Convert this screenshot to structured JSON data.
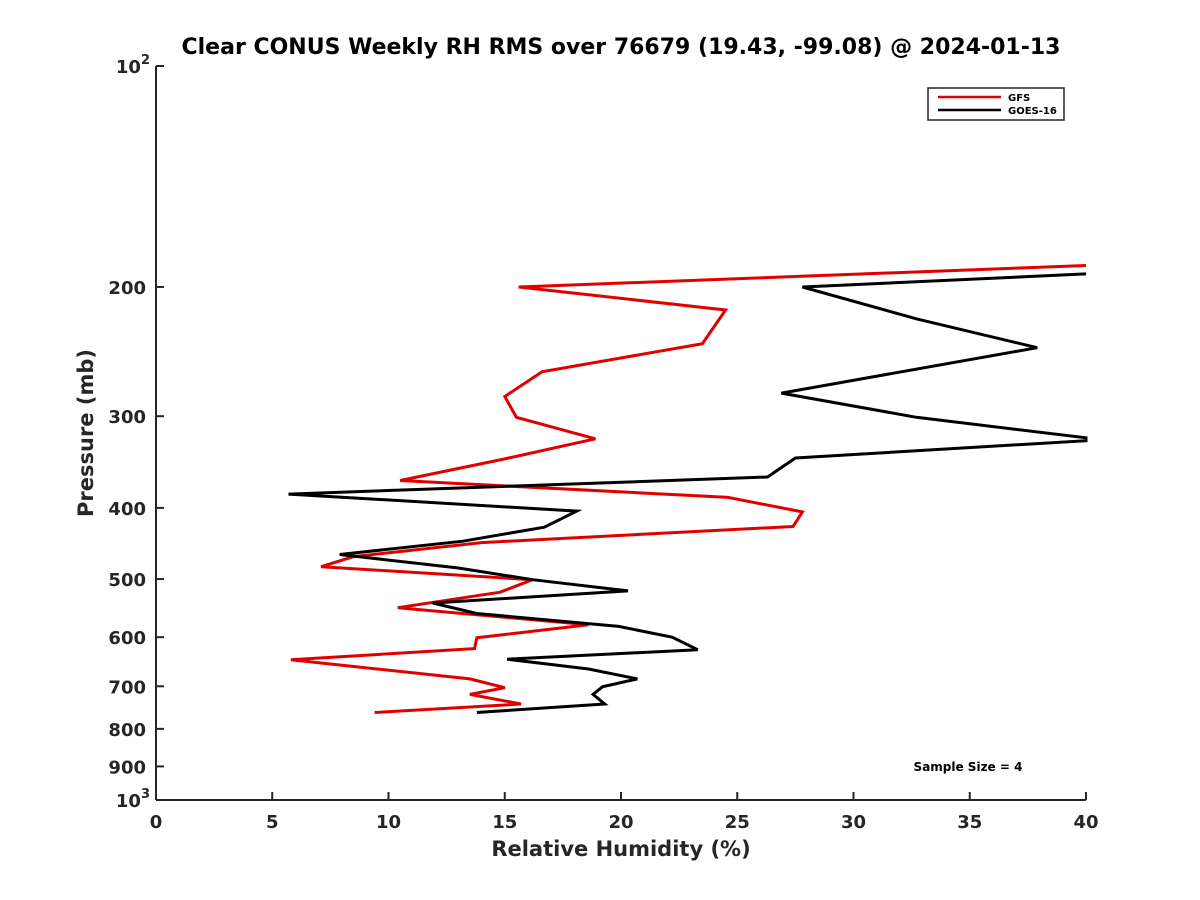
{
  "chart_data": {
    "type": "line",
    "title": "Clear CONUS Weekly RH RMS over 76679 (19.43, -99.08) @ 2024-01-13",
    "xlabel": "Relative Humidity (%)",
    "ylabel": "Pressure (mb)",
    "xlim": [
      0,
      40
    ],
    "ylim": [
      100,
      1000
    ],
    "y_scale": "log",
    "y_reversed": true,
    "x_ticks": [
      "0",
      "5",
      "10",
      "15",
      "20",
      "25",
      "30",
      "35",
      "40"
    ],
    "y_ticks": [
      {
        "value": 100,
        "base": "10",
        "exp": "2",
        "label": ""
      },
      {
        "value": 200,
        "label": "200"
      },
      {
        "value": 300,
        "label": "300"
      },
      {
        "value": 400,
        "label": "400"
      },
      {
        "value": 500,
        "label": "500"
      },
      {
        "value": 600,
        "label": "600"
      },
      {
        "value": 700,
        "label": "700"
      },
      {
        "value": 800,
        "label": "800"
      },
      {
        "value": 900,
        "label": "900"
      },
      {
        "value": 1000,
        "base": "10",
        "exp": "3",
        "label": ""
      }
    ],
    "grid": false,
    "legend_position": "top-right",
    "annotation": "Sample Size = 4",
    "series": [
      {
        "name": "GFS",
        "color": "#e00000",
        "points": [
          [
            40,
            187
          ],
          [
            15.6,
            200
          ],
          [
            24.5,
            215
          ],
          [
            23.5,
            239
          ],
          [
            16.6,
            261
          ],
          [
            15.0,
            282
          ],
          [
            15.5,
            301
          ],
          [
            18.9,
            322
          ],
          [
            15.0,
            343
          ],
          [
            10.5,
            367
          ],
          [
            24.6,
            387
          ],
          [
            27.8,
            405
          ],
          [
            27.4,
            424
          ],
          [
            14.0,
            446
          ],
          [
            8.5,
            466
          ],
          [
            7.1,
            481
          ],
          [
            16.2,
            501
          ],
          [
            14.8,
            521
          ],
          [
            10.4,
            547
          ],
          [
            18.6,
            577
          ],
          [
            13.8,
            601
          ],
          [
            13.7,
            622
          ],
          [
            5.8,
            644
          ],
          [
            8.9,
            660
          ],
          [
            13.5,
            684
          ],
          [
            15.0,
            703
          ],
          [
            13.5,
            718
          ],
          [
            15.7,
            740
          ],
          [
            9.4,
            760
          ]
        ]
      },
      {
        "name": "GOES-16",
        "color": "#000000",
        "points": [
          [
            40,
            192
          ],
          [
            27.8,
            200
          ],
          [
            32.7,
            221
          ],
          [
            37.9,
            242
          ],
          [
            26.9,
            279
          ],
          [
            32.7,
            301
          ],
          [
            40,
            321
          ],
          [
            40,
            324
          ],
          [
            27.5,
            342
          ],
          [
            26.3,
            363
          ],
          [
            5.7,
            383
          ],
          [
            18.1,
            404
          ],
          [
            16.7,
            425
          ],
          [
            13.2,
            444
          ],
          [
            7.9,
            463
          ],
          [
            13.0,
            483
          ],
          [
            16.2,
            501
          ],
          [
            20.3,
            519
          ],
          [
            11.9,
            539
          ],
          [
            13.8,
            557
          ],
          [
            19.9,
            580
          ],
          [
            22.2,
            600
          ],
          [
            23.3,
            624
          ],
          [
            15.1,
            643
          ],
          [
            18.6,
            663
          ],
          [
            20.7,
            684
          ],
          [
            19.2,
            701
          ],
          [
            18.8,
            718
          ],
          [
            19.3,
            740
          ],
          [
            13.8,
            760
          ]
        ]
      }
    ]
  }
}
